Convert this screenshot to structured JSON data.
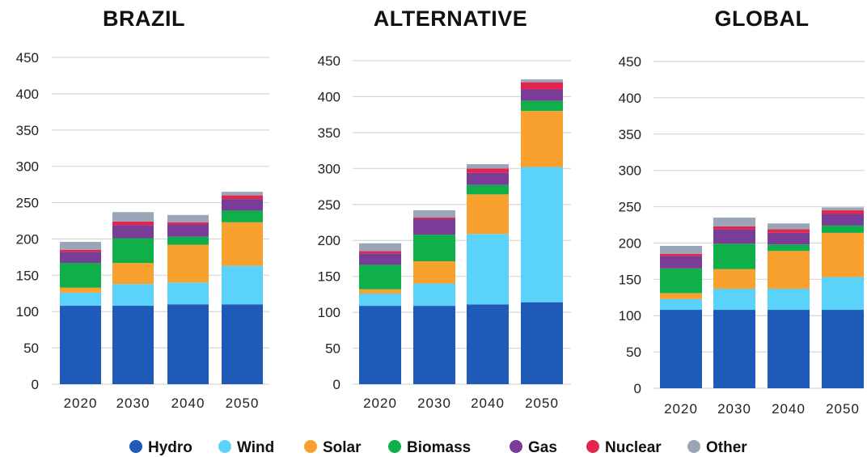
{
  "chart_data": [
    {
      "type": "bar",
      "stacked": true,
      "title": "BRAZIL",
      "categories": [
        "2020",
        "2030",
        "2040",
        "2050"
      ],
      "ylim": [
        0,
        450
      ],
      "yticks": [
        0,
        50,
        100,
        150,
        200,
        250,
        300,
        350,
        400,
        450
      ],
      "grid": true,
      "series": [
        {
          "name": "Hydro",
          "values": [
            108,
            108,
            110,
            110
          ]
        },
        {
          "name": "Wind",
          "values": [
            18,
            30,
            30,
            53
          ]
        },
        {
          "name": "Solar",
          "values": [
            7,
            29,
            52,
            60
          ]
        },
        {
          "name": "Biomass",
          "values": [
            34,
            34,
            11,
            16
          ]
        },
        {
          "name": "Gas",
          "values": [
            15,
            18,
            17,
            16
          ]
        },
        {
          "name": "Nuclear",
          "values": [
            3,
            5,
            3,
            5
          ]
        },
        {
          "name": "Other",
          "values": [
            11,
            13,
            10,
            5
          ]
        }
      ]
    },
    {
      "type": "bar",
      "stacked": true,
      "title": "ALTERNATIVE",
      "categories": [
        "2020",
        "2030",
        "2040",
        "2050"
      ],
      "ylim": [
        0,
        450
      ],
      "yticks": [
        0,
        50,
        100,
        150,
        200,
        250,
        300,
        350,
        400,
        450
      ],
      "grid": true,
      "series": [
        {
          "name": "Hydro",
          "values": [
            109,
            109,
            111,
            114
          ]
        },
        {
          "name": "Wind",
          "values": [
            17,
            31,
            98,
            188
          ]
        },
        {
          "name": "Solar",
          "values": [
            6,
            31,
            55,
            78
          ]
        },
        {
          "name": "Biomass",
          "values": [
            34,
            37,
            13,
            14
          ]
        },
        {
          "name": "Gas",
          "values": [
            16,
            22,
            17,
            16
          ]
        },
        {
          "name": "Nuclear",
          "values": [
            3,
            2,
            6,
            10
          ]
        },
        {
          "name": "Other",
          "values": [
            11,
            10,
            6,
            4
          ]
        }
      ]
    },
    {
      "type": "bar",
      "stacked": true,
      "title": "GLOBAL",
      "categories": [
        "2020",
        "2030",
        "2040",
        "2050"
      ],
      "ylim": [
        0,
        450
      ],
      "yticks": [
        0,
        50,
        100,
        150,
        200,
        250,
        300,
        350,
        400,
        450
      ],
      "grid": true,
      "series": [
        {
          "name": "Hydro",
          "values": [
            108,
            108,
            108,
            108
          ]
        },
        {
          "name": "Wind",
          "values": [
            15,
            29,
            29,
            45
          ]
        },
        {
          "name": "Solar",
          "values": [
            8,
            27,
            52,
            61
          ]
        },
        {
          "name": "Biomass",
          "values": [
            34,
            35,
            9,
            10
          ]
        },
        {
          "name": "Gas",
          "values": [
            17,
            20,
            16,
            16
          ]
        },
        {
          "name": "Nuclear",
          "values": [
            3,
            4,
            5,
            5
          ]
        },
        {
          "name": "Other",
          "values": [
            11,
            12,
            8,
            4
          ]
        }
      ]
    }
  ],
  "legend": {
    "placement": "bottom",
    "items": [
      {
        "name": "Hydro",
        "color": "#1f5ab8"
      },
      {
        "name": "Wind",
        "color": "#5bd2fa"
      },
      {
        "name": "Solar",
        "color": "#f9a12e"
      },
      {
        "name": "Biomass",
        "color": "#0faf4a"
      },
      {
        "name": "Gas",
        "color": "#7a3d97"
      },
      {
        "name": "Nuclear",
        "color": "#e2254c"
      },
      {
        "name": "Other",
        "color": "#9aa6b8"
      }
    ]
  }
}
